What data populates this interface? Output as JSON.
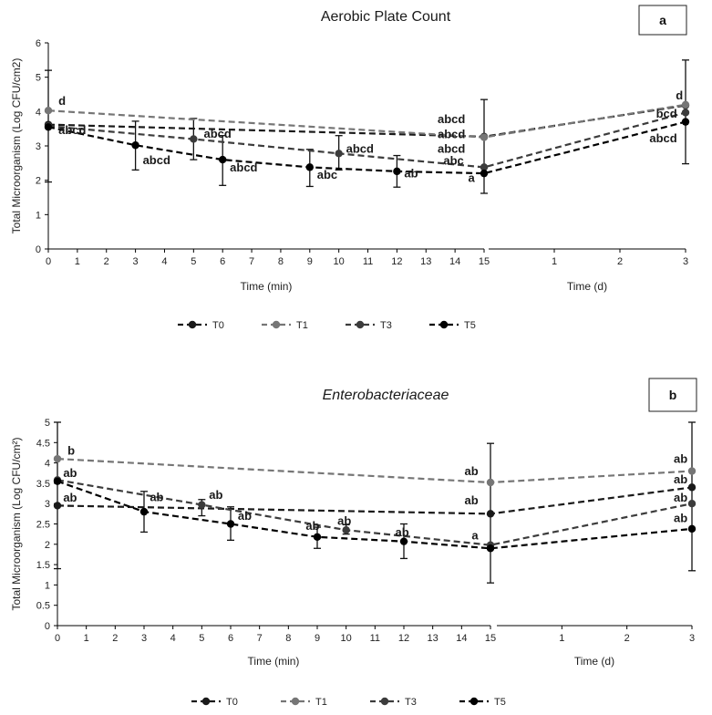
{
  "chart_data": [
    {
      "type": "line",
      "title": "Aerobic Plate Count",
      "title_italic": false,
      "panel_label": "a",
      "ylabel": "Total Microorganism (Log CFU/cm2)",
      "ylim": [
        0,
        6
      ],
      "yticks": [
        "0",
        "1",
        "2",
        "3",
        "4",
        "5",
        "6"
      ],
      "xlabel_min": "Time (min)",
      "xlabel_day": "Time (d)",
      "xticks_min": [
        "0",
        "1",
        "2",
        "3",
        "4",
        "5",
        "6",
        "7",
        "8",
        "9",
        "10",
        "11",
        "12",
        "13",
        "14",
        "15"
      ],
      "xticks_day": [
        "1",
        "2",
        "3"
      ],
      "legend": [
        "T0",
        "T1",
        "T3",
        "T5"
      ],
      "series": [
        {
          "name": "T0",
          "color": "#1a1a1a",
          "dash": "7,4",
          "points": [
            {
              "seg": "min",
              "x": 0,
              "y": 3.62
            },
            {
              "seg": "min",
              "x": 15,
              "y": 3.27
            },
            {
              "seg": "day",
              "x": 3,
              "y": 4.18
            }
          ]
        },
        {
          "name": "T1",
          "color": "#767676",
          "dash": "7,4",
          "points": [
            {
              "seg": "min",
              "x": 0,
              "y": 4.03
            },
            {
              "seg": "min",
              "x": 15,
              "y": 3.25
            },
            {
              "seg": "day",
              "x": 3,
              "y": 4.2
            }
          ]
        },
        {
          "name": "T3",
          "color": "#3c3c3c",
          "dash": "7,4",
          "points": [
            {
              "seg": "min",
              "x": 0,
              "y": 3.58
            },
            {
              "seg": "min",
              "x": 5,
              "y": 3.2
            },
            {
              "seg": "min",
              "x": 10,
              "y": 2.78
            },
            {
              "seg": "min",
              "x": 15,
              "y": 2.38
            },
            {
              "seg": "day",
              "x": 3,
              "y": 3.97
            }
          ]
        },
        {
          "name": "T5",
          "color": "#000000",
          "dash": "7,4",
          "points": [
            {
              "seg": "min",
              "x": 0,
              "y": 3.55
            },
            {
              "seg": "min",
              "x": 3,
              "y": 3.02
            },
            {
              "seg": "min",
              "x": 6,
              "y": 2.6
            },
            {
              "seg": "min",
              "x": 9,
              "y": 2.38
            },
            {
              "seg": "min",
              "x": 12,
              "y": 2.26
            },
            {
              "seg": "min",
              "x": 15,
              "y": 2.2
            },
            {
              "seg": "day",
              "x": 3,
              "y": 3.7
            }
          ]
        }
      ],
      "error_bars": [
        {
          "seg": "min",
          "x": 0,
          "low": 1.95,
          "high": 5.2
        },
        {
          "seg": "min",
          "x": 3,
          "low": 2.3,
          "high": 3.72
        },
        {
          "seg": "min",
          "x": 5,
          "low": 2.6,
          "high": 3.8
        },
        {
          "seg": "min",
          "x": 6,
          "low": 1.85,
          "high": 3.3
        },
        {
          "seg": "min",
          "x": 9,
          "low": 1.82,
          "high": 2.9
        },
        {
          "seg": "min",
          "x": 10,
          "low": 2.3,
          "high": 3.3
        },
        {
          "seg": "min",
          "x": 12,
          "low": 1.8,
          "high": 2.72
        },
        {
          "seg": "min",
          "x": 15,
          "low": 1.62,
          "high": 4.35
        },
        {
          "seg": "day",
          "x": 3,
          "low": 2.48,
          "high": 5.5
        }
      ],
      "annotations": [
        {
          "text": "d",
          "seg": "min",
          "x": 0.35,
          "y": 4.2
        },
        {
          "text": "abcd",
          "seg": "min",
          "x": 0.35,
          "y": 3.35
        },
        {
          "text": "abcd",
          "seg": "min",
          "x": 3.25,
          "y": 2.47
        },
        {
          "text": "abcd",
          "seg": "min",
          "x": 5.35,
          "y": 3.24
        },
        {
          "text": "abcd",
          "seg": "min",
          "x": 6.25,
          "y": 2.26
        },
        {
          "text": "abc",
          "seg": "min",
          "x": 9.25,
          "y": 2.05
        },
        {
          "text": "abcd",
          "seg": "min",
          "x": 10.25,
          "y": 2.8
        },
        {
          "text": "ab",
          "seg": "min",
          "x": 12.25,
          "y": 2.08
        },
        {
          "text": "abcd",
          "seg": "min",
          "x": 13.4,
          "y": 3.67
        },
        {
          "text": "abcd",
          "seg": "min",
          "x": 13.4,
          "y": 3.23
        },
        {
          "text": "abcd",
          "seg": "min",
          "x": 13.4,
          "y": 2.8
        },
        {
          "text": "abc",
          "seg": "min",
          "x": 13.6,
          "y": 2.46
        },
        {
          "text": "a",
          "seg": "min",
          "x": 14.45,
          "y": 1.95
        },
        {
          "text": "d",
          "seg": "day",
          "x": 2.85,
          "y": 4.35
        },
        {
          "text": "bcd",
          "seg": "day",
          "x": 2.55,
          "y": 3.82
        },
        {
          "text": "abcd",
          "seg": "day",
          "x": 2.45,
          "y": 3.1
        }
      ]
    },
    {
      "type": "line",
      "title": "Enterobacteriaceae",
      "title_italic": true,
      "panel_label": "b",
      "ylabel": "Total Microorganism (Log CFU/cm²)",
      "ylim": [
        0,
        5
      ],
      "yticks": [
        "0",
        "0.5",
        "1",
        "1.5",
        "2",
        "2.5",
        "3",
        "3.5",
        "4",
        "4.5",
        "5"
      ],
      "xlabel_min": "Time (min)",
      "xlabel_day": "Time (d)",
      "xticks_min": [
        "0",
        "1",
        "2",
        "3",
        "4",
        "5",
        "6",
        "7",
        "8",
        "9",
        "10",
        "11",
        "12",
        "13",
        "14",
        "15"
      ],
      "xticks_day": [
        "1",
        "2",
        "3"
      ],
      "legend": [
        "T0",
        "T1",
        "T3",
        "T5"
      ],
      "series": [
        {
          "name": "T0",
          "color": "#1a1a1a",
          "dash": "7,4",
          "points": [
            {
              "seg": "min",
              "x": 0,
              "y": 2.95
            },
            {
              "seg": "min",
              "x": 15,
              "y": 2.75
            },
            {
              "seg": "day",
              "x": 3,
              "y": 3.4
            }
          ]
        },
        {
          "name": "T1",
          "color": "#767676",
          "dash": "7,4",
          "points": [
            {
              "seg": "min",
              "x": 0,
              "y": 4.1
            },
            {
              "seg": "min",
              "x": 15,
              "y": 3.52
            },
            {
              "seg": "day",
              "x": 3,
              "y": 3.8
            }
          ]
        },
        {
          "name": "T3",
          "color": "#3c3c3c",
          "dash": "7,4",
          "points": [
            {
              "seg": "min",
              "x": 0,
              "y": 3.58
            },
            {
              "seg": "min",
              "x": 5,
              "y": 2.97
            },
            {
              "seg": "min",
              "x": 10,
              "y": 2.35
            },
            {
              "seg": "min",
              "x": 15,
              "y": 1.98
            },
            {
              "seg": "day",
              "x": 3,
              "y": 3.0
            }
          ]
        },
        {
          "name": "T5",
          "color": "#000000",
          "dash": "7,4",
          "points": [
            {
              "seg": "min",
              "x": 0,
              "y": 3.55
            },
            {
              "seg": "min",
              "x": 3,
              "y": 2.8
            },
            {
              "seg": "min",
              "x": 6,
              "y": 2.5
            },
            {
              "seg": "min",
              "x": 9,
              "y": 2.18
            },
            {
              "seg": "min",
              "x": 12,
              "y": 2.07
            },
            {
              "seg": "min",
              "x": 15,
              "y": 1.9
            },
            {
              "seg": "day",
              "x": 3,
              "y": 2.38
            }
          ]
        }
      ],
      "error_bars": [
        {
          "seg": "min",
          "x": 0,
          "low": 1.4,
          "high": 5.0
        },
        {
          "seg": "min",
          "x": 3,
          "low": 2.3,
          "high": 3.3
        },
        {
          "seg": "min",
          "x": 5,
          "low": 2.7,
          "high": 3.1
        },
        {
          "seg": "min",
          "x": 6,
          "low": 2.1,
          "high": 2.92
        },
        {
          "seg": "min",
          "x": 9,
          "low": 1.9,
          "high": 2.42
        },
        {
          "seg": "min",
          "x": 10,
          "low": 2.25,
          "high": 2.48
        },
        {
          "seg": "min",
          "x": 12,
          "low": 1.65,
          "high": 2.5
        },
        {
          "seg": "min",
          "x": 15,
          "low": 1.05,
          "high": 4.48
        },
        {
          "seg": "day",
          "x": 3,
          "low": 1.35,
          "high": 5.0
        }
      ],
      "annotations": [
        {
          "text": "b",
          "seg": "min",
          "x": 0.35,
          "y": 4.2
        },
        {
          "text": "ab",
          "seg": "min",
          "x": 0.2,
          "y": 3.65
        },
        {
          "text": "ab",
          "seg": "min",
          "x": 0.2,
          "y": 3.05
        },
        {
          "text": "ab",
          "seg": "min",
          "x": 3.2,
          "y": 3.06
        },
        {
          "text": "ab",
          "seg": "min",
          "x": 5.25,
          "y": 3.12
        },
        {
          "text": "ab",
          "seg": "min",
          "x": 6.25,
          "y": 2.6
        },
        {
          "text": "ab",
          "seg": "min",
          "x": 8.6,
          "y": 2.35
        },
        {
          "text": "ab",
          "seg": "min",
          "x": 9.7,
          "y": 2.48
        },
        {
          "text": "ab",
          "seg": "min",
          "x": 11.7,
          "y": 2.2
        },
        {
          "text": "ab",
          "seg": "min",
          "x": 14.1,
          "y": 3.7
        },
        {
          "text": "ab",
          "seg": "min",
          "x": 14.1,
          "y": 2.98
        },
        {
          "text": "a",
          "seg": "min",
          "x": 14.35,
          "y": 2.12
        },
        {
          "text": "ab",
          "seg": "day",
          "x": 2.72,
          "y": 4.0
        },
        {
          "text": "ab",
          "seg": "day",
          "x": 2.72,
          "y": 3.5
        },
        {
          "text": "ab",
          "seg": "day",
          "x": 2.72,
          "y": 3.05
        },
        {
          "text": "ab",
          "seg": "day",
          "x": 2.72,
          "y": 2.55
        }
      ]
    }
  ]
}
